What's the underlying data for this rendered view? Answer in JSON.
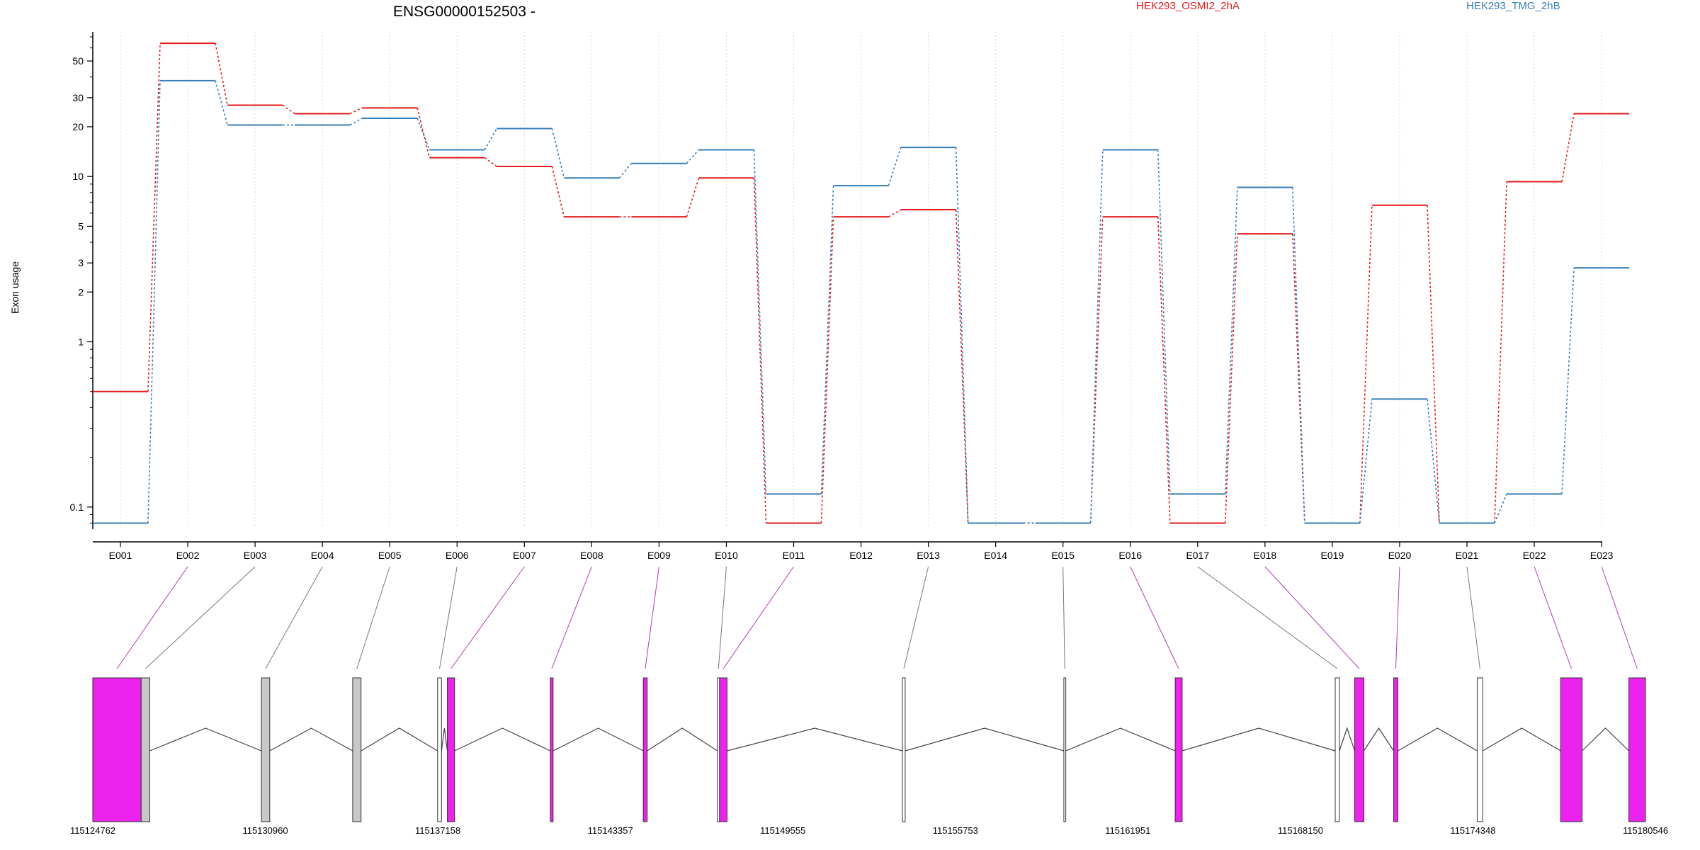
{
  "chart_data": {
    "type": "line",
    "title": "ENSG00000152503 -",
    "ylabel": "Exon usage",
    "xlabel": "",
    "y_scale": "log",
    "ylim": [
      0.075,
      75
    ],
    "y_ticks": [
      {
        "value": 0.1,
        "label": "0.1"
      },
      {
        "value": 1,
        "label": "1"
      },
      {
        "value": 2,
        "label": "2"
      },
      {
        "value": 3,
        "label": "3"
      },
      {
        "value": 5,
        "label": "5"
      },
      {
        "value": 10,
        "label": "10"
      },
      {
        "value": 20,
        "label": "20"
      },
      {
        "value": 30,
        "label": "30"
      },
      {
        "value": 50,
        "label": "50"
      }
    ],
    "categories": [
      "E001",
      "E002",
      "E003",
      "E004",
      "E005",
      "E006",
      "E007",
      "E008",
      "E009",
      "E010",
      "E011",
      "E012",
      "E013",
      "E014",
      "E015",
      "E016",
      "E017",
      "E018",
      "E019",
      "E020",
      "E021",
      "E022",
      "E023"
    ],
    "series": [
      {
        "name": "HEK293_OSMI2_2hA",
        "color": "#e41a1c",
        "values": [
          0.5,
          64,
          27,
          24,
          26,
          13,
          11.5,
          5.7,
          5.7,
          9.8,
          0.08,
          5.7,
          6.3,
          0.08,
          0.08,
          5.7,
          0.08,
          4.5,
          0.08,
          6.7,
          0.08,
          9.3,
          24
        ]
      },
      {
        "name": "HEK293_TMG_2hB",
        "color": "#377eb8",
        "values": [
          0.08,
          38,
          20.5,
          20.5,
          22.5,
          14.5,
          19.5,
          9.8,
          12,
          14.5,
          0.12,
          8.8,
          15,
          0.08,
          0.08,
          14.5,
          0.12,
          8.6,
          0.08,
          0.45,
          0.08,
          0.12,
          2.8
        ]
      }
    ],
    "grid": "vertical",
    "legend_position": "top"
  },
  "gene_model": {
    "coordinates": [
      "115124762",
      "115130960",
      "115137158",
      "115143357",
      "115149555",
      "115155753",
      "115161951",
      "115168150",
      "115174348",
      "115180546"
    ],
    "exons": [
      {
        "start": 115124762,
        "end": 115126500,
        "color": "#ee22ee",
        "label_index": 1
      },
      {
        "start": 115126500,
        "end": 115126810,
        "color": "#c8c8c8",
        "label_index": 2
      },
      {
        "start": 115130820,
        "end": 115131120,
        "color": "#c8c8c8",
        "label_index": 3
      },
      {
        "start": 115134100,
        "end": 115134400,
        "color": "#c8c8c8",
        "label_index": 4
      },
      {
        "start": 115137150,
        "end": 115137290,
        "color": "#ffffff",
        "label_index": 5
      },
      {
        "start": 115137500,
        "end": 115137760,
        "color": "#ee22ee",
        "label_index": 6
      },
      {
        "start": 115141200,
        "end": 115141300,
        "color": "#ee22ee",
        "label_index": 7
      },
      {
        "start": 115144540,
        "end": 115144680,
        "color": "#ee22ee",
        "label_index": 8
      },
      {
        "start": 115147200,
        "end": 115147280,
        "color": "#ffffff",
        "label_index": 9
      },
      {
        "start": 115147280,
        "end": 115147550,
        "color": "#ee22ee",
        "label_index": 10
      },
      {
        "start": 115153850,
        "end": 115153950,
        "color": "#ffffff",
        "label_index": 12
      },
      {
        "start": 115159650,
        "end": 115159720,
        "color": "#ffffff",
        "label_index": 14
      },
      {
        "start": 115163650,
        "end": 115163900,
        "color": "#ee22ee",
        "label_index": 15
      },
      {
        "start": 115169400,
        "end": 115169550,
        "color": "#ffffff",
        "label_index": 16
      },
      {
        "start": 115170100,
        "end": 115170430,
        "color": "#ee22ee",
        "label_index": 17
      },
      {
        "start": 115171500,
        "end": 115171650,
        "color": "#ee22ee",
        "label_index": 19
      },
      {
        "start": 115174500,
        "end": 115174700,
        "color": "#ffffff",
        "label_index": 20
      },
      {
        "start": 115177500,
        "end": 115178270,
        "color": "#ee22ee",
        "label_index": 21
      },
      {
        "start": 115179950,
        "end": 115180546,
        "color": "#ee22ee",
        "label_index": 22
      }
    ]
  }
}
